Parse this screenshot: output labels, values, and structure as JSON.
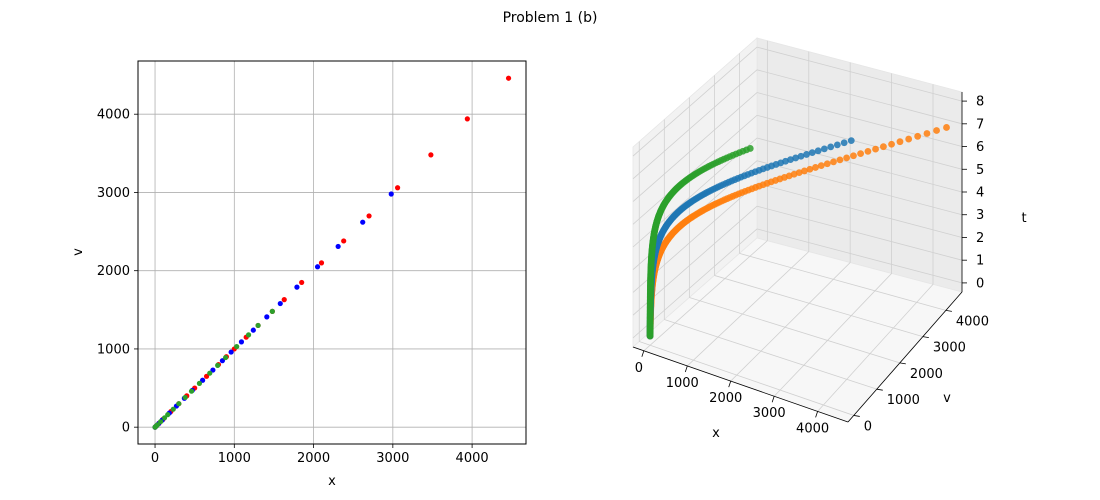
{
  "figure": {
    "suptitle": "Problem 1 (b)"
  },
  "chart_data": [
    {
      "type": "scatter",
      "xlabel": "x",
      "ylabel": "v",
      "xlim": [
        -215,
        4680
      ],
      "ylim": [
        -215,
        4680
      ],
      "xticks": [
        0,
        1000,
        2000,
        3000,
        4000
      ],
      "yticks": [
        0,
        1000,
        2000,
        3000,
        4000
      ],
      "grid": true,
      "series": [
        {
          "color": "#ff0000",
          "values": [
            0,
            20,
            50,
            100,
            200,
            300,
            400,
            500,
            650,
            800,
            900,
            1000,
            1150,
            1300,
            1480,
            1630,
            1850,
            2100,
            2380,
            2700,
            3060,
            3480,
            3940,
            4460
          ]
        },
        {
          "color": "#0000ff",
          "values": [
            0,
            15,
            45,
            90,
            180,
            270,
            370,
            470,
            600,
            730,
            850,
            960,
            1090,
            1240,
            1410,
            1580,
            1790,
            2050,
            2310,
            2620,
            2980
          ]
        },
        {
          "color": "#2ca02c",
          "values": [
            0,
            10,
            30,
            70,
            120,
            160,
            230,
            300,
            380,
            460,
            560,
            690,
            790,
            890,
            1030,
            1180,
            1300,
            1480
          ]
        }
      ]
    },
    {
      "type": "scatter",
      "projection": "3d",
      "xlabel": "x",
      "ylabel": "v",
      "zlabel": "t",
      "xticks": [
        0,
        1000,
        2000,
        3000,
        4000
      ],
      "yticks": [
        0,
        1000,
        2000,
        3000,
        4000
      ],
      "zticks": [
        0,
        1,
        2,
        3,
        4,
        5,
        6,
        7,
        8
      ],
      "grid": true,
      "series": [
        {
          "color": "#1f77b4",
          "t_max": 7.3,
          "final_x": 3000
        },
        {
          "color": "#ff7f0e",
          "t_max": 7.0,
          "final_x": 4460
        },
        {
          "color": "#2ca02c",
          "t_max": 7.7,
          "final_x": 1480
        }
      ]
    }
  ]
}
